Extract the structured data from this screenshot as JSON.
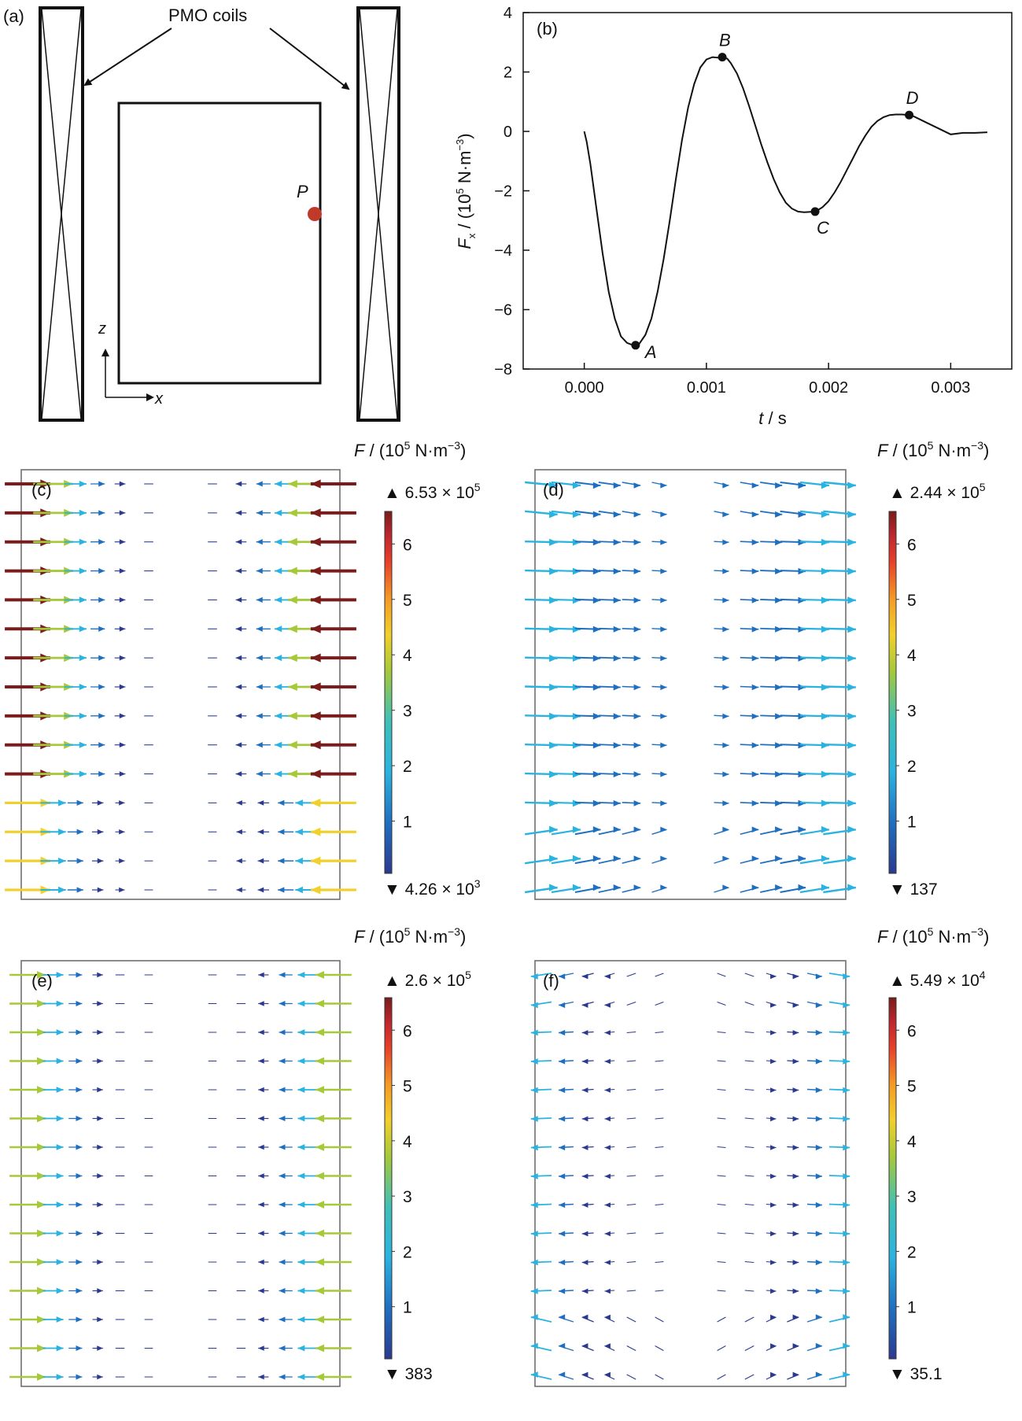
{
  "panel_a": {
    "label": "(a)",
    "coil_label": "PMO coils",
    "point_label": "P",
    "axis_z": "z",
    "axis_x": "x"
  },
  "panel_b": {
    "label": "(b)",
    "ylabel_var": "F",
    "ylabel_sub": "x",
    "ylabel_unit_pre": " / (10",
    "ylabel_unit_exp": "5",
    "ylabel_unit_mid": " N·m",
    "ylabel_unit_exp2": "−3",
    "ylabel_unit_post": ")",
    "xlabel_var": "t",
    "xlabel_unit": " / s",
    "points": [
      {
        "name": "A",
        "t": 0.00042,
        "f": -7.2
      },
      {
        "name": "B",
        "t": 0.00113,
        "f": 2.5
      },
      {
        "name": "C",
        "t": 0.00189,
        "f": -2.7
      },
      {
        "name": "D",
        "t": 0.00266,
        "f": 0.55
      }
    ]
  },
  "field_panels": [
    {
      "label": "(c)",
      "title_var": "F",
      "title_unit": " / (10",
      "title_exp": "5",
      "title_mid": " N·m",
      "title_exp2": "−3",
      "title_post": ")",
      "max_label": "6.53 × 10",
      "max_exp": "5",
      "min_label": "4.26 × 10",
      "min_exp": "3",
      "ticks": [
        "1",
        "2",
        "3",
        "4",
        "5",
        "6"
      ],
      "direction": "inward",
      "peak": 6.53
    },
    {
      "label": "(d)",
      "title_var": "F",
      "title_unit": " / (10",
      "title_exp": "5",
      "title_mid": " N·m",
      "title_exp2": "−3",
      "title_post": ")",
      "max_label": "2.44 × 10",
      "max_exp": "5",
      "min_label": "137",
      "min_exp": "",
      "ticks": [
        "1",
        "2",
        "3",
        "4",
        "5",
        "6"
      ],
      "direction": "rightward",
      "peak": 2.44
    },
    {
      "label": "(e)",
      "title_var": "F",
      "title_unit": " / (10",
      "title_exp": "5",
      "title_mid": " N·m",
      "title_exp2": "−3",
      "title_post": ")",
      "max_label": "2.6 × 10",
      "max_exp": "5",
      "min_label": "383",
      "min_exp": "",
      "ticks": [
        "1",
        "2",
        "3",
        "4",
        "5",
        "6"
      ],
      "direction": "inward",
      "peak": 2.6
    },
    {
      "label": "(f)",
      "title_var": "F",
      "title_unit": " / (10",
      "title_exp": "5",
      "title_mid": " N·m",
      "title_exp2": "−3",
      "title_post": ")",
      "max_label": "5.49 × 10",
      "max_exp": "4",
      "min_label": "35.1",
      "min_exp": "",
      "ticks": [
        "1",
        "2",
        "3",
        "4",
        "5",
        "6"
      ],
      "direction": "outward",
      "peak": 0.55
    }
  ],
  "chart_data": {
    "type": "line",
    "xlabel": "t / s",
    "ylabel": "F_x / (10^5 N·m^-3)",
    "xlim": [
      -0.0005,
      0.0035
    ],
    "ylim": [
      -8,
      4
    ],
    "xticks": [
      "0.000",
      "0.001",
      "0.002",
      "0.003"
    ],
    "xtick_values": [
      0,
      0.001,
      0.002,
      0.003
    ],
    "yticks": [
      "4",
      "2",
      "0",
      "−2",
      "−4",
      "−6",
      "−8"
    ],
    "ytick_values": [
      4,
      2,
      0,
      -2,
      -4,
      -6,
      -8
    ],
    "grid": false,
    "series": [
      {
        "x": [
          0.0,
          2e-05,
          5e-05,
          0.0001,
          0.00015,
          0.0002,
          0.00025,
          0.0003,
          0.00035,
          0.0004,
          0.00042,
          0.00045,
          0.0005,
          0.00055,
          0.0006,
          0.00065,
          0.0007,
          0.00075,
          0.0008,
          0.00085,
          0.0009,
          0.00095,
          0.001,
          0.00105,
          0.0011,
          0.00113,
          0.00117,
          0.0012,
          0.00125,
          0.0013,
          0.00135,
          0.0014,
          0.00145,
          0.0015,
          0.00155,
          0.0016,
          0.00165,
          0.0017,
          0.00175,
          0.0018,
          0.00189,
          0.0019,
          0.00195,
          0.002,
          0.00205,
          0.0021,
          0.00215,
          0.0022,
          0.00225,
          0.0023,
          0.00235,
          0.0024,
          0.00245,
          0.0025,
          0.00255,
          0.0026,
          0.00266,
          0.0027,
          0.0028,
          0.0029,
          0.003,
          0.0031,
          0.0032,
          0.0033
        ],
        "y": [
          0.0,
          -0.35,
          -1.1,
          -2.6,
          -4.1,
          -5.4,
          -6.3,
          -6.9,
          -7.12,
          -7.2,
          -7.2,
          -7.15,
          -6.85,
          -6.3,
          -5.4,
          -4.3,
          -3.0,
          -1.6,
          -0.3,
          0.8,
          1.6,
          2.15,
          2.42,
          2.5,
          2.48,
          2.5,
          2.45,
          2.3,
          1.95,
          1.45,
          0.85,
          0.2,
          -0.45,
          -1.05,
          -1.6,
          -2.05,
          -2.4,
          -2.6,
          -2.7,
          -2.72,
          -2.7,
          -2.68,
          -2.55,
          -2.35,
          -2.05,
          -1.7,
          -1.3,
          -0.9,
          -0.5,
          -0.15,
          0.15,
          0.35,
          0.48,
          0.55,
          0.57,
          0.57,
          0.55,
          0.5,
          0.3,
          0.1,
          -0.1,
          -0.05,
          -0.05,
          -0.03
        ]
      }
    ]
  },
  "colors": {
    "arrow_scale": [
      "#2b3a8f",
      "#1f6fc0",
      "#2ab3e0",
      "#3fc0b8",
      "#a6c93a",
      "#f2d02c",
      "#f49a25",
      "#e8402a",
      "#c1272d",
      "#7a1c1c"
    ],
    "marker": "#c0392b"
  }
}
